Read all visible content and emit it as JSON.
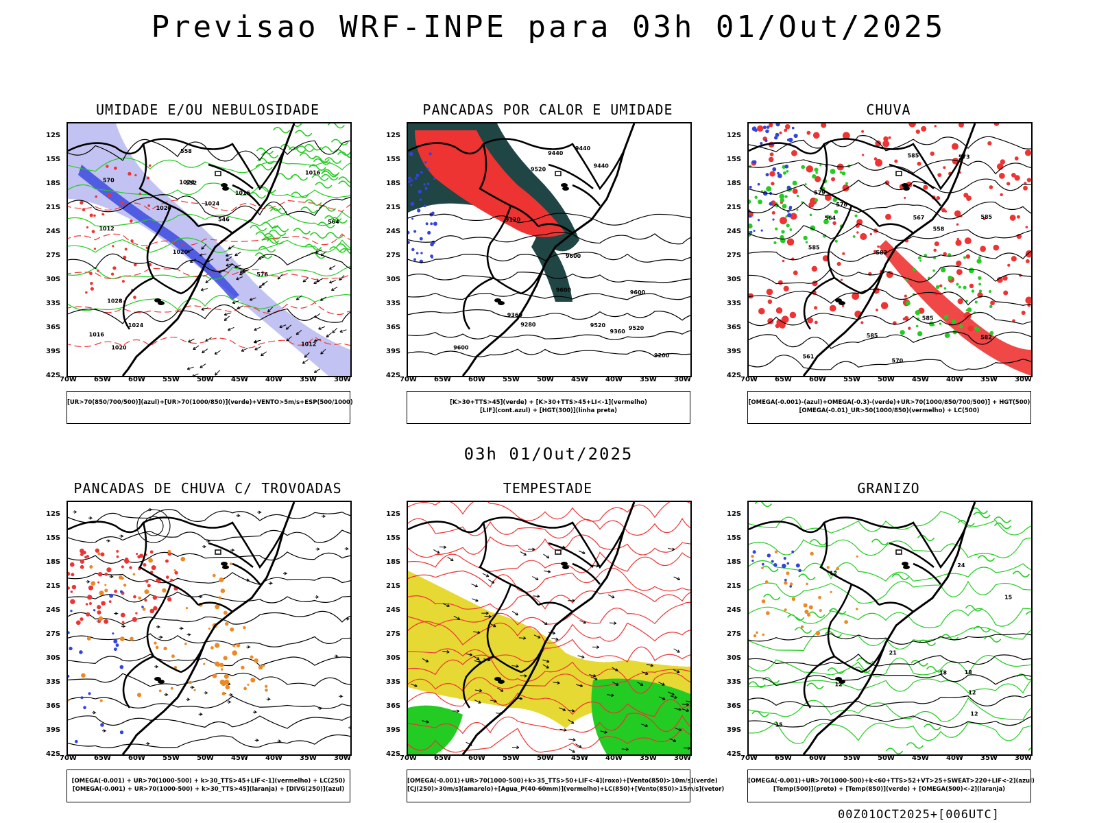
{
  "title": "Previsao WRF-INPE  para 03h 01/Out/2025",
  "mid_date": "03h 01/Out/2025",
  "footer": "00Z01OCT2025+[006UTC]",
  "lat_ticks": [
    "12S",
    "15S",
    "18S",
    "21S",
    "24S",
    "27S",
    "30S",
    "33S",
    "36S",
    "39S",
    "42S"
  ],
  "lon_ticks": [
    "70W",
    "65W",
    "60W",
    "55W",
    "50W",
    "45W",
    "40W",
    "35W",
    "30W"
  ],
  "colors": {
    "blue": "#3344dd",
    "green": "#22cc22",
    "red": "#ee3333",
    "lavender": "#aaaaee",
    "darkteal": "#1f4545",
    "orange": "#ee8822",
    "yellow": "#e6d933",
    "darkgreen": "#11aa11"
  },
  "panels": [
    {
      "id": "p1",
      "title": "UMIDADE E/OU NEBULOSIDADE",
      "legend": [
        "[UR>70(850/700/500)](azul)+[UR>70(1000/850)](verde)+VENTO>5m/s+ESP(500/1000)"
      ],
      "contour_labels": [
        "1012",
        "1012",
        "1016",
        "1020",
        "1016",
        "1020",
        "1024",
        "1024",
        "1028",
        "1020",
        "1016",
        "1024",
        "552",
        "546",
        "576",
        "570",
        "558",
        "564"
      ]
    },
    {
      "id": "p2",
      "title": "PANCADAS POR CALOR E UMIDADE",
      "legend": [
        "[K>30+TTS>45](verde) + [K>30+TTS>45+LI<-1](vermelho)",
        "[LIF](cont.azul) + [HGT(300)](linha preta)"
      ],
      "contour_labels": [
        "9600",
        "9600",
        "9600",
        "9600",
        "9520",
        "9440",
        "9520",
        "9440",
        "9360",
        "9360",
        "9200",
        "9120",
        "9280",
        "9440",
        "9520"
      ]
    },
    {
      "id": "p3",
      "title": "CHUVA",
      "legend": [
        "[OMEGA(-0.001)-(azul)+OMEGA(-0.3)-(verde)+UR>70(1000/850/700/500)] + HGT(500)",
        "[OMEGA(-0.01)_UR>50(1000/850)(vermelho) + LC(500)"
      ],
      "contour_labels": [
        "585",
        "585",
        "585",
        "585",
        "582",
        "579",
        "576",
        "573",
        "570",
        "567",
        "564",
        "561",
        "558",
        "585",
        "582"
      ]
    },
    {
      "id": "p4",
      "title": "PANCADAS DE CHUVA C/ TROVOADAS",
      "legend": [
        "[OMEGA(-0.001) + UR>70(1000-500) + k>30_TTS>45+LIF<-1](vermelho) + LC(250)",
        "[OMEGA(-0.001) + UR>70(1000-500) + k>30_TTS>45](laranja) + [DIVG(250)](azul)"
      ],
      "contour_labels": []
    },
    {
      "id": "p5",
      "title": "TEMPESTADE",
      "legend": [
        "[OMEGA(-0.001)+UR>70(1000-500)+k>35_TTS>50+LIF<-4](roxo)+[Vento(850)>10m/s](verde)",
        "[CJ(250)>30m/s](amarelo)+[Agua_P(40-60mm)](vermelho)+LC(850)+[Vento(850)>15m/s](vetor)"
      ],
      "contour_labels": []
    },
    {
      "id": "p6",
      "title": "GRANIZO",
      "legend": [
        "[OMEGA(-0.001)+UR>70(1000-500)+k<60+TTS>52+VT>25+SWEAT>220+LIF<-2](azul)",
        "[Temp(500)](preto) + [Temp(850)](verde) + [OMEGA(500)<-2](laranja)"
      ],
      "contour_labels": [
        "12",
        "15",
        "12",
        "12",
        "15",
        "18",
        "21",
        "24",
        "18",
        "12"
      ]
    }
  ]
}
